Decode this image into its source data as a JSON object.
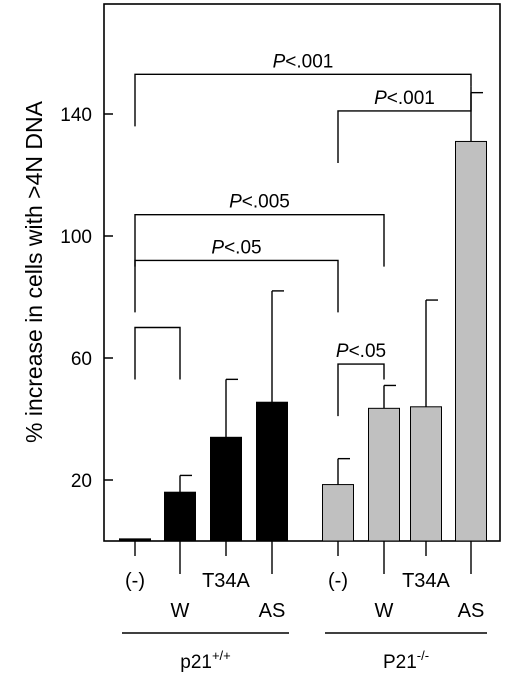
{
  "chart_data": {
    "type": "bar",
    "ylabel": "% increase in cells with >4N DNA",
    "y_ticks": [
      20,
      60,
      100,
      140
    ],
    "ylim": [
      0,
      175
    ],
    "categories": [
      {
        "label": "(-)",
        "value": 0.7,
        "error": 0,
        "group": 0,
        "color": "#000000"
      },
      {
        "label": "W",
        "value": 16.0,
        "error": 5.5,
        "group": 0,
        "color": "#000000"
      },
      {
        "label": "T34A",
        "value": 34.0,
        "error": 19.0,
        "group": 0,
        "color": "#000000"
      },
      {
        "label": "AS",
        "value": 45.5,
        "error": 36.5,
        "group": 0,
        "color": "#000000"
      },
      {
        "label": "(-)",
        "value": 18.5,
        "error": 8.5,
        "group": 1,
        "color": "#c0c0c0"
      },
      {
        "label": "W",
        "value": 43.5,
        "error": 7.5,
        "group": 1,
        "color": "#c0c0c0"
      },
      {
        "label": "T34A",
        "value": 44.0,
        "error": 35.0,
        "group": 1,
        "color": "#c0c0c0"
      },
      {
        "label": "AS",
        "value": 131.0,
        "error": 16.0,
        "group": 1,
        "color": "#c0c0c0"
      }
    ],
    "groups": [
      {
        "label": "p21",
        "superscript": "+/+"
      },
      {
        "label": "P21",
        "superscript": "-/-"
      }
    ],
    "comparisons": [
      {
        "from": 0,
        "to": 7,
        "level": 153,
        "label_p": "P",
        "label_rest": "<.001"
      },
      {
        "from": 4,
        "to": 7,
        "level": 141,
        "label_p": "P",
        "label_rest": "<.001"
      },
      {
        "from": 0,
        "to": 5,
        "level": 107,
        "label_p": "P",
        "label_rest": "<.005"
      },
      {
        "from": 0,
        "to": 4,
        "level": 92,
        "label_p": "P",
        "label_rest": "<.05"
      },
      {
        "from": 0,
        "to": 1,
        "level": 70,
        "label_p": "",
        "label_rest": ""
      },
      {
        "from": 4,
        "to": 5,
        "level": 58,
        "label_p": "P",
        "label_rest": "<.05"
      }
    ]
  }
}
